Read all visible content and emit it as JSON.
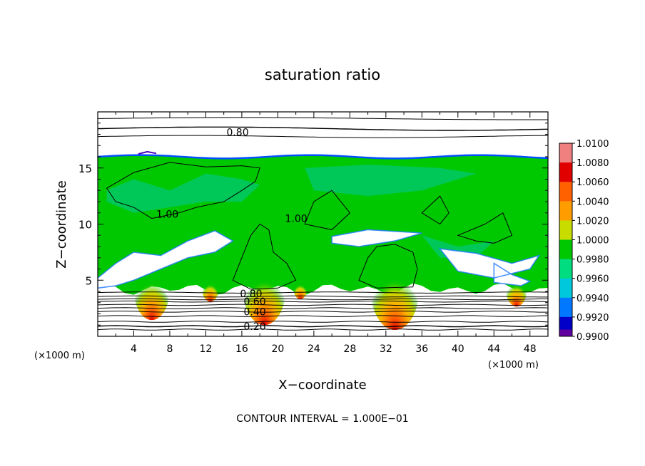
{
  "chart_data": {
    "type": "heatmap",
    "title": "saturation ratio",
    "xlabel": "X−coordinate",
    "ylabel": "Z−coordinate",
    "x_unit_label": "(×1000 m)",
    "z_unit_label": "(×1000 m)",
    "footer": "CONTOUR INTERVAL = 1.000E−01",
    "xlim": [
      0,
      50
    ],
    "ylim": [
      0,
      20
    ],
    "x_ticks": [
      "4",
      "8",
      "12",
      "16",
      "20",
      "24",
      "28",
      "32",
      "36",
      "40",
      "44",
      "48"
    ],
    "x_tick_values": [
      4,
      8,
      12,
      16,
      20,
      24,
      28,
      32,
      36,
      40,
      44,
      48
    ],
    "y_ticks": [
      "5",
      "10",
      "15"
    ],
    "y_tick_values": [
      5,
      10,
      15
    ],
    "colorbar": {
      "labels": [
        "1.0100",
        "1.0080",
        "1.0060",
        "1.0040",
        "1.0020",
        "1.0000",
        "0.9980",
        "0.9960",
        "0.9940",
        "0.9920",
        "0.9900"
      ],
      "values": [
        1.01,
        1.008,
        1.006,
        1.004,
        1.002,
        1.0,
        0.998,
        0.996,
        0.994,
        0.992,
        0.99
      ],
      "colors": [
        "#f08080",
        "#e00000",
        "#ff6000",
        "#ff9c00",
        "#c8dc00",
        "#00c800",
        "#00dc80",
        "#00c8dc",
        "#0078ff",
        "#0000c8",
        "#6000a0"
      ]
    },
    "contour_labels": [
      {
        "text": "0.80",
        "x": 14.3,
        "z": 18.2
      },
      {
        "text": "1.00",
        "x": 6.5,
        "z": 10.9
      },
      {
        "text": "1.00",
        "x": 20.8,
        "z": 10.5
      },
      {
        "text": "0.80",
        "x": 15.8,
        "z": 3.8
      },
      {
        "text": "0.60",
        "x": 16.2,
        "z": 3.1
      },
      {
        "text": "0.40",
        "x": 16.2,
        "z": 2.2
      },
      {
        "text": "0.20",
        "x": 16.2,
        "z": 0.9
      }
    ],
    "cloud_top_z": 16.0,
    "cloud_base_z": 4.2
  }
}
